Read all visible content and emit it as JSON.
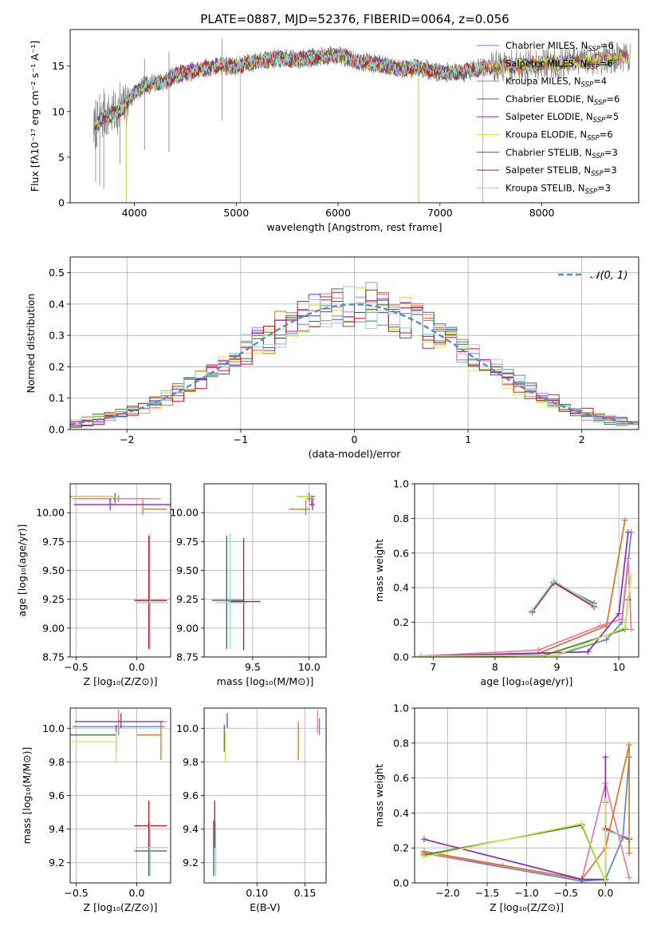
{
  "figure_title": "PLATE=0887, MJD=52376, FIBERID=0064, z=0.056",
  "colors": {
    "Chabrier MILES": "#5b87c9",
    "Salpeter MILES": "#e87aa6",
    "Kroupa MILES": "#d8761e",
    "Chabrier ELODIE": "#3d7d3d",
    "Salpeter ELODIE": "#8a2bb8",
    "Kroupa ELODIE": "#cfe84d",
    "Chabrier STELIB": "#555555",
    "Salpeter STELIB": "#c8141e",
    "Kroupa STELIB": "#8ed6e3"
  },
  "legend_entries": [
    {
      "model": "Chabrier MILES",
      "label": "Chabrier MILES, N",
      "sub": "SSP",
      "suffix": "=6"
    },
    {
      "model": "Salpeter MILES",
      "label": "Salpeter MILES, N",
      "sub": "SSP",
      "suffix": "=6"
    },
    {
      "model": "Kroupa MILES",
      "label": "Kroupa MILES, N",
      "sub": "SSP",
      "suffix": "=4"
    },
    {
      "model": "Chabrier ELODIE",
      "label": "Chabrier ELODIE, N",
      "sub": "SSP",
      "suffix": "=6"
    },
    {
      "model": "Salpeter ELODIE",
      "label": "Salpeter ELODIE, N",
      "sub": "SSP",
      "suffix": "=5"
    },
    {
      "model": "Kroupa ELODIE",
      "label": "Kroupa ELODIE, N",
      "sub": "SSP",
      "suffix": "=6"
    },
    {
      "model": "Chabrier STELIB",
      "label": "Chabrier STELIB, N",
      "sub": "SSP",
      "suffix": "=3"
    },
    {
      "model": "Salpeter STELIB",
      "label": "Salpeter STELIB, N",
      "sub": "SSP",
      "suffix": "=3"
    },
    {
      "model": "Kroupa STELIB",
      "label": "Kroupa STELIB, N",
      "sub": "SSP",
      "suffix": "=3"
    }
  ],
  "chart_data": [
    {
      "id": "spectrum",
      "type": "line",
      "xlabel": "wavelength [Angstrom, rest frame]",
      "ylabel": "Flux [fλ10⁻¹⁷ erg cm⁻² s⁻¹ A⁻¹]",
      "xlim": [
        3370,
        8950
      ],
      "ylim": [
        0,
        19
      ],
      "xticks": [
        4000,
        5000,
        6000,
        7000,
        8000
      ],
      "yticks": [
        0,
        5,
        10,
        15
      ],
      "legend": "upper right",
      "grid": false,
      "data_series": {
        "name": "data",
        "color": "#808080"
      },
      "anchor_x": [
        3600,
        3700,
        3800,
        3900,
        4000,
        4100,
        4200,
        4300,
        4400,
        4600,
        4800,
        5000,
        5200,
        5400,
        5600,
        5800,
        6000,
        6200,
        6400,
        6600,
        6800,
        7000,
        7200,
        7400,
        7600,
        7800,
        8000,
        8200,
        8400,
        8600,
        8800
      ],
      "anchor_y": [
        8.0,
        9.5,
        9.8,
        10.5,
        12.0,
        12.8,
        13.2,
        13.3,
        14.0,
        14.5,
        15.0,
        15.0,
        15.5,
        15.8,
        15.7,
        16.0,
        16.2,
        15.5,
        15.2,
        14.7,
        14.8,
        14.3,
        14.3,
        14.8,
        15.0,
        15.0,
        15.3,
        15.3,
        15.5,
        15.8,
        16.0
      ],
      "model_xmax": {
        "Salpeter STELIB": 7430,
        "Kroupa STELIB": 7430,
        "Chabrier STELIB": 7430
      },
      "dips": [
        {
          "x": 3920,
          "y": 0
        },
        {
          "x": 5040,
          "y": 0
        },
        {
          "x": 6790,
          "y": 0
        },
        {
          "x": 7420,
          "y": 0
        }
      ]
    },
    {
      "id": "residual_hist",
      "type": "histogram",
      "xlabel": "(data-model)/error",
      "ylabel": "Normed distribution",
      "xlim": [
        -2.5,
        2.5
      ],
      "ylim": [
        0,
        0.55
      ],
      "xticks": [
        -2,
        -1,
        0,
        1,
        2
      ],
      "yticks": [
        0.0,
        0.1,
        0.2,
        0.3,
        0.4,
        0.5
      ],
      "grid": true,
      "bin_width": 0.1,
      "reference_curve": {
        "name": "𝒩(0, 1)",
        "mean": 0,
        "sigma": 1,
        "color": "#5b87c9",
        "style": "dashed"
      },
      "legend": "upper right"
    },
    {
      "id": "age_vs_Z",
      "type": "errorbar",
      "xlabel": "Z [log₁₀(Z/Z⊙)]",
      "ylabel": "age  [log₁₀(age/yr)]",
      "xlim": [
        -0.55,
        0.28
      ],
      "ylim": [
        8.75,
        10.25
      ],
      "xticks": [
        -0.5,
        0.0
      ],
      "yticks": [
        8.75,
        9.0,
        9.25,
        9.5,
        9.75,
        10.0
      ],
      "grid": true,
      "points": [
        {
          "model": "Chabrier MILES",
          "x": -0.15,
          "xerr": [
            0.38,
            0.24
          ],
          "y": 10.12,
          "yerr": [
            0.03,
            0.03
          ]
        },
        {
          "model": "Salpeter MILES",
          "x": -0.18,
          "xerr": [
            0.35,
            0.38
          ],
          "y": 10.12,
          "yerr": [
            0.06,
            0.03
          ]
        },
        {
          "model": "Kroupa MILES",
          "x": 0.05,
          "xerr": [
            0.0,
            0.2
          ],
          "y": 10.03,
          "yerr": [
            0.05,
            0.08
          ]
        },
        {
          "model": "Chabrier ELODIE",
          "x": -0.18,
          "xerr": [
            0.38,
            0.0
          ],
          "y": 10.14,
          "yerr": [
            0.05,
            0.03
          ]
        },
        {
          "model": "Salpeter ELODIE",
          "x": -0.22,
          "xerr": [
            0.3,
            0.5
          ],
          "y": 10.07,
          "yerr": [
            0.05,
            0.05
          ]
        },
        {
          "model": "Kroupa ELODIE",
          "x": -0.17,
          "xerr": [
            0.37,
            0.0
          ],
          "y": 10.14,
          "yerr": [
            0.03,
            0.03
          ]
        },
        {
          "model": "Chabrier STELIB",
          "x": 0.1,
          "xerr": [
            0.12,
            0.15
          ],
          "y": 9.24,
          "yerr": [
            0.42,
            0.56
          ]
        },
        {
          "model": "Salpeter STELIB",
          "x": 0.1,
          "xerr": [
            0.12,
            0.15
          ],
          "y": 9.24,
          "yerr": [
            0.42,
            0.56
          ]
        },
        {
          "model": "Kroupa STELIB",
          "x": 0.11,
          "xerr": [
            0.12,
            0.15
          ],
          "y": 9.22,
          "yerr": [
            0.4,
            0.6
          ]
        }
      ]
    },
    {
      "id": "age_vs_mass",
      "type": "errorbar",
      "xlabel": "mass [log₁₀(M/M⊙)]",
      "ylabel": "",
      "xlim": [
        9.07,
        10.15
      ],
      "ylim": [
        8.75,
        10.25
      ],
      "xticks": [
        9.5,
        10.0
      ],
      "yticks": [
        8.75,
        9.0,
        9.25,
        9.5,
        9.75,
        10.0
      ],
      "grid": true,
      "points": [
        {
          "model": "Chabrier MILES",
          "x": 10.02,
          "xerr": [
            0.02,
            0.02
          ],
          "y": 10.12,
          "yerr": [
            0.03,
            0.03
          ]
        },
        {
          "model": "Salpeter MILES",
          "x": 10.02,
          "xerr": [
            0.05,
            0.03
          ],
          "y": 10.12,
          "yerr": [
            0.06,
            0.03
          ]
        },
        {
          "model": "Kroupa MILES",
          "x": 9.97,
          "xerr": [
            0.15,
            0.04
          ],
          "y": 10.03,
          "yerr": [
            0.05,
            0.08
          ]
        },
        {
          "model": "Chabrier ELODIE",
          "x": 10.0,
          "xerr": [
            0.1,
            0.05
          ],
          "y": 10.14,
          "yerr": [
            0.05,
            0.03
          ]
        },
        {
          "model": "Salpeter ELODIE",
          "x": 10.03,
          "xerr": [
            0.03,
            0.02
          ],
          "y": 10.07,
          "yerr": [
            0.05,
            0.05
          ]
        },
        {
          "model": "Kroupa ELODIE",
          "x": 9.98,
          "xerr": [
            0.1,
            0.04
          ],
          "y": 10.14,
          "yerr": [
            0.03,
            0.03
          ]
        },
        {
          "model": "Chabrier STELIB",
          "x": 9.27,
          "xerr": [
            0.13,
            0.15
          ],
          "y": 9.24,
          "yerr": [
            0.42,
            0.56
          ]
        },
        {
          "model": "Salpeter STELIB",
          "x": 9.42,
          "xerr": [
            0.13,
            0.15
          ],
          "y": 9.23,
          "yerr": [
            0.42,
            0.55
          ]
        },
        {
          "model": "Kroupa STELIB",
          "x": 9.3,
          "xerr": [
            0.13,
            0.15
          ],
          "y": 9.22,
          "yerr": [
            0.4,
            0.6
          ]
        }
      ]
    },
    {
      "id": "massweight_vs_age",
      "type": "line",
      "xlabel": "age  [log₁₀(age/yr)]",
      "ylabel": "mass weight",
      "xlim": [
        6.7,
        10.32
      ],
      "ylim": [
        0,
        1.0
      ],
      "xticks": [
        7,
        8,
        9,
        10
      ],
      "yticks": [
        0.0,
        0.2,
        0.4,
        0.6,
        0.8,
        1.0
      ],
      "grid": true,
      "series": [
        {
          "model": "Chabrier MILES",
          "x": [
            6.8,
            9.0,
            9.8,
            10.05,
            10.2
          ],
          "y": [
            0.005,
            0.01,
            0.1,
            0.2,
            0.72
          ]
        },
        {
          "model": "Salpeter MILES",
          "x": [
            6.8,
            8.7,
            9.7,
            10.05,
            10.15,
            10.2
          ],
          "y": [
            0.005,
            0.04,
            0.18,
            0.22,
            0.57,
            0.16
          ]
        },
        {
          "model": "Kroupa MILES",
          "x": [
            6.8,
            8.7,
            9.8,
            10.1
          ],
          "y": [
            0.0,
            0.02,
            0.18,
            0.79
          ]
        },
        {
          "model": "Chabrier ELODIE",
          "x": [
            6.8,
            8.8,
            10.1,
            10.15
          ],
          "y": [
            0.0,
            0.01,
            0.16,
            0.33
          ]
        },
        {
          "model": "Salpeter ELODIE",
          "x": [
            6.8,
            9.5,
            10.0,
            10.15
          ],
          "y": [
            0.005,
            0.03,
            0.25,
            0.72
          ]
        },
        {
          "model": "Kroupa ELODIE",
          "x": [
            6.8,
            9.0,
            10.1,
            10.2
          ],
          "y": [
            0.005,
            0.01,
            0.17,
            0.47
          ]
        },
        {
          "model": "Chabrier STELIB",
          "x": [
            8.6,
            8.95,
            9.6
          ],
          "y": [
            0.26,
            0.43,
            0.31
          ]
        },
        {
          "model": "Salpeter STELIB",
          "x": [
            8.6,
            8.95,
            9.6
          ],
          "y": [
            0.26,
            0.43,
            0.29
          ]
        },
        {
          "model": "Kroupa STELIB",
          "x": [
            8.6,
            8.95,
            9.6
          ],
          "y": [
            0.27,
            0.44,
            0.3
          ]
        }
      ]
    },
    {
      "id": "mass_vs_Z",
      "type": "errorbar",
      "xlabel": "Z [log₁₀(Z/Z⊙)]",
      "ylabel": "mass [log₁₀(M/M⊙)]",
      "xlim": [
        -0.55,
        0.28
      ],
      "ylim": [
        9.08,
        10.12
      ],
      "xticks": [
        -0.5,
        0.0
      ],
      "yticks": [
        9.2,
        9.4,
        9.6,
        9.8,
        10.0
      ],
      "grid": true,
      "points": [
        {
          "model": "Chabrier MILES",
          "x": -0.15,
          "xerr": [
            0.38,
            0.38
          ],
          "y": 10.01,
          "yerr": [
            0.05,
            0.05
          ]
        },
        {
          "model": "Salpeter MILES",
          "x": -0.15,
          "xerr": [
            0.35,
            0.4
          ],
          "y": 10.04,
          "yerr": [
            0.07,
            0.07
          ]
        },
        {
          "model": "Kroupa MILES",
          "x": 0.2,
          "xerr": [
            0.2,
            0.0
          ],
          "y": 9.96,
          "yerr": [
            0.15,
            0.08
          ]
        },
        {
          "model": "Chabrier ELODIE",
          "x": -0.17,
          "xerr": [
            0.38,
            0.0
          ],
          "y": 9.96,
          "yerr": [
            0.1,
            0.06
          ]
        },
        {
          "model": "Salpeter ELODIE",
          "x": -0.13,
          "xerr": [
            0.38,
            0.35
          ],
          "y": 10.04,
          "yerr": [
            0.04,
            0.05
          ]
        },
        {
          "model": "Kroupa ELODIE",
          "x": -0.17,
          "xerr": [
            0.37,
            0.0
          ],
          "y": 9.92,
          "yerr": [
            0.12,
            0.06
          ]
        },
        {
          "model": "Chabrier STELIB",
          "x": 0.1,
          "xerr": [
            0.12,
            0.15
          ],
          "y": 9.27,
          "yerr": [
            0.15,
            0.18
          ]
        },
        {
          "model": "Salpeter STELIB",
          "x": 0.1,
          "xerr": [
            0.12,
            0.15
          ],
          "y": 9.42,
          "yerr": [
            0.13,
            0.15
          ]
        },
        {
          "model": "Kroupa STELIB",
          "x": 0.11,
          "xerr": [
            0.12,
            0.15
          ],
          "y": 9.29,
          "yerr": [
            0.17,
            0.15
          ]
        }
      ]
    },
    {
      "id": "mass_vs_EBV",
      "type": "errorbar",
      "xlabel": "E(B-V)",
      "ylabel": "",
      "xlim": [
        0.045,
        0.172
      ],
      "ylim": [
        9.08,
        10.12
      ],
      "xticks": [
        0.1,
        0.15
      ],
      "yticks": [
        9.2,
        9.4,
        9.6,
        9.8,
        10.0
      ],
      "grid": true,
      "points": [
        {
          "model": "Chabrier MILES",
          "x": 0.165,
          "xerr": [
            0.0,
            0.0
          ],
          "y": 10.01,
          "yerr": [
            0.05,
            0.05
          ]
        },
        {
          "model": "Salpeter MILES",
          "x": 0.163,
          "xerr": [
            0.0,
            0.0
          ],
          "y": 10.04,
          "yerr": [
            0.07,
            0.07
          ]
        },
        {
          "model": "Kroupa MILES",
          "x": 0.143,
          "xerr": [
            0.0,
            0.0
          ],
          "y": 9.96,
          "yerr": [
            0.15,
            0.08
          ]
        },
        {
          "model": "Chabrier ELODIE",
          "x": 0.066,
          "xerr": [
            0.0,
            0.0
          ],
          "y": 9.96,
          "yerr": [
            0.1,
            0.06
          ]
        },
        {
          "model": "Salpeter ELODIE",
          "x": 0.069,
          "xerr": [
            0.0,
            0.0
          ],
          "y": 10.04,
          "yerr": [
            0.04,
            0.05
          ]
        },
        {
          "model": "Kroupa ELODIE",
          "x": 0.067,
          "xerr": [
            0.0,
            0.0
          ],
          "y": 9.92,
          "yerr": [
            0.12,
            0.06
          ]
        },
        {
          "model": "Chabrier STELIB",
          "x": 0.055,
          "xerr": [
            0.0,
            0.0
          ],
          "y": 9.27,
          "yerr": [
            0.15,
            0.18
          ]
        },
        {
          "model": "Salpeter STELIB",
          "x": 0.056,
          "xerr": [
            0.0,
            0.0
          ],
          "y": 9.42,
          "yerr": [
            0.13,
            0.15
          ]
        },
        {
          "model": "Kroupa STELIB",
          "x": 0.057,
          "xerr": [
            0.0,
            0.0
          ],
          "y": 9.29,
          "yerr": [
            0.17,
            0.15
          ]
        }
      ]
    },
    {
      "id": "massweight_vs_Z",
      "type": "line",
      "xlabel": "Z [log₁₀(Z/Z⊙)]",
      "ylabel": "mass weight",
      "xlim": [
        -2.42,
        0.42
      ],
      "ylim": [
        0,
        1.0
      ],
      "xticks": [
        -2.0,
        -1.5,
        -1.0,
        -0.5,
        0.0
      ],
      "yticks": [
        0.0,
        0.2,
        0.4,
        0.6,
        0.8,
        1.0
      ],
      "grid": true,
      "series": [
        {
          "model": "Chabrier MILES",
          "x": [
            -2.3,
            -0.3,
            0.0,
            0.22,
            0.3
          ],
          "y": [
            0.17,
            0.01,
            0.02,
            0.26,
            0.72
          ]
        },
        {
          "model": "Salpeter MILES",
          "x": [
            -2.3,
            -1.3,
            -0.3,
            0.0,
            0.3
          ],
          "y": [
            0.17,
            0.1,
            0.02,
            0.57,
            0.03
          ]
        },
        {
          "model": "Kroupa MILES",
          "x": [
            -2.3,
            -0.3,
            0.0,
            0.3,
            0.3
          ],
          "y": [
            0.18,
            0.02,
            0.2,
            0.79,
            0.17
          ]
        },
        {
          "model": "Chabrier ELODIE",
          "x": [
            -2.3,
            -0.3,
            0.0,
            0.0
          ],
          "y": [
            0.16,
            0.33,
            0.01,
            0.46
          ]
        },
        {
          "model": "Salpeter ELODIE",
          "x": [
            -2.3,
            -0.3,
            0.0,
            0.0
          ],
          "y": [
            0.25,
            0.02,
            0.02,
            0.72
          ]
        },
        {
          "model": "Kroupa ELODIE",
          "x": [
            -2.3,
            -0.3,
            0.0,
            0.0
          ],
          "y": [
            0.15,
            0.34,
            0.01,
            0.47
          ]
        },
        {
          "model": "Chabrier STELIB",
          "x": [
            0.0,
            0.3
          ],
          "y": [
            0.3,
            0.26
          ]
        },
        {
          "model": "Salpeter STELIB",
          "x": [
            0.0,
            0.3
          ],
          "y": [
            0.31,
            0.25
          ]
        },
        {
          "model": "Kroupa STELIB",
          "x": [
            0.0,
            0.3
          ],
          "y": [
            0.3,
            0.26
          ]
        }
      ]
    }
  ]
}
